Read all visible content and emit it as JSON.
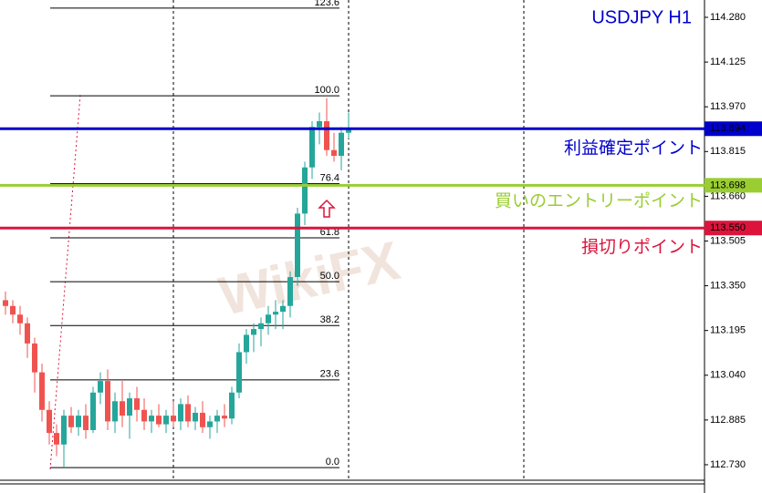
{
  "chart_data": {
    "type": "candlestick",
    "title": "USDJPY H1",
    "watermark": "WikiFX",
    "up_color": "#26a69a",
    "down_color": "#ef5350",
    "ylim": [
      112.632,
      114.34
    ],
    "yticks": [
      {
        "value": 114.28,
        "label": "114.280"
      },
      114.125,
      {
        "value": 113.97,
        "label": "113.970"
      },
      113.815,
      {
        "value": 113.66,
        "label": "113.660"
      },
      113.505,
      {
        "value": 113.35,
        "label": "113.350"
      },
      113.195,
      {
        "value": 113.04,
        "label": "113.040"
      },
      112.885,
      {
        "value": 112.73,
        "label": "112.730"
      }
    ],
    "open": [
      113.3,
      113.28,
      113.25,
      113.22,
      113.15,
      113.05,
      112.92,
      112.84,
      112.8,
      112.9,
      112.86,
      112.9,
      112.85,
      112.98,
      113.02,
      112.88,
      112.95,
      112.9,
      112.96,
      112.92,
      112.88,
      112.9,
      112.87,
      112.9,
      112.88,
      112.94,
      112.88,
      112.91,
      112.86,
      112.88,
      112.9,
      112.89,
      112.98,
      113.12,
      113.18,
      113.2,
      113.22,
      113.25,
      113.26,
      113.28,
      113.38,
      113.6,
      113.76,
      113.9,
      113.92,
      113.82,
      113.8,
      113.88
    ],
    "high": [
      113.33,
      113.3,
      113.28,
      113.24,
      113.17,
      113.08,
      112.95,
      112.87,
      112.92,
      112.93,
      112.92,
      112.94,
      113.0,
      113.05,
      113.06,
      112.98,
      113.02,
      112.98,
      113.0,
      112.96,
      112.92,
      112.94,
      112.92,
      112.95,
      112.96,
      112.97,
      112.93,
      112.95,
      112.9,
      112.92,
      112.94,
      113.0,
      113.15,
      113.2,
      113.22,
      113.24,
      113.28,
      113.3,
      113.3,
      113.4,
      113.62,
      113.78,
      113.92,
      113.95,
      114.0,
      113.88,
      113.9,
      113.95
    ],
    "low": [
      113.25,
      113.22,
      113.18,
      113.1,
      112.98,
      112.88,
      112.8,
      112.76,
      112.72,
      112.84,
      112.83,
      112.82,
      112.84,
      112.94,
      112.85,
      112.84,
      112.86,
      112.82,
      112.88,
      112.85,
      112.84,
      112.86,
      112.84,
      112.86,
      112.85,
      112.86,
      112.85,
      112.84,
      112.82,
      112.84,
      112.86,
      112.87,
      112.96,
      113.08,
      113.12,
      113.14,
      113.18,
      113.2,
      113.2,
      113.24,
      113.35,
      113.56,
      113.72,
      113.84,
      113.8,
      113.78,
      113.75,
      113.86
    ],
    "close": [
      113.28,
      113.25,
      113.22,
      113.15,
      113.05,
      112.92,
      112.84,
      112.8,
      112.9,
      112.86,
      112.9,
      112.85,
      112.98,
      113.02,
      112.88,
      112.95,
      112.9,
      112.96,
      112.92,
      112.88,
      112.9,
      112.87,
      112.9,
      112.88,
      112.94,
      112.88,
      112.91,
      112.86,
      112.88,
      112.9,
      112.89,
      112.98,
      113.12,
      113.18,
      113.2,
      113.22,
      113.25,
      113.26,
      113.28,
      113.38,
      113.6,
      113.76,
      113.9,
      113.92,
      113.82,
      113.8,
      113.88,
      113.89
    ],
    "levels": [
      {
        "value": 113.894,
        "value_label": "113.894",
        "color": "#0000cc",
        "annotation": "利益確定ポイント"
      },
      {
        "value": 113.698,
        "value_label": "113.698",
        "color": "#9acd32",
        "annotation": "買いのエントリーポイント"
      },
      {
        "value": 113.55,
        "value_label": "113.550",
        "color": "#dc143c",
        "annotation": "損切りポイント"
      }
    ],
    "fibonacci": [
      {
        "label": "123.6",
        "value": 114.312
      },
      {
        "label": "100.0",
        "value": 114.008
      },
      {
        "label": "76.4",
        "value": 113.704
      },
      {
        "label": "61.8",
        "value": 113.516
      },
      {
        "label": "50.0",
        "value": 113.364
      },
      {
        "label": "38.2",
        "value": 113.212
      },
      {
        "label": "23.6",
        "value": 113.024
      },
      {
        "label": "0.0",
        "value": 112.72
      }
    ]
  }
}
